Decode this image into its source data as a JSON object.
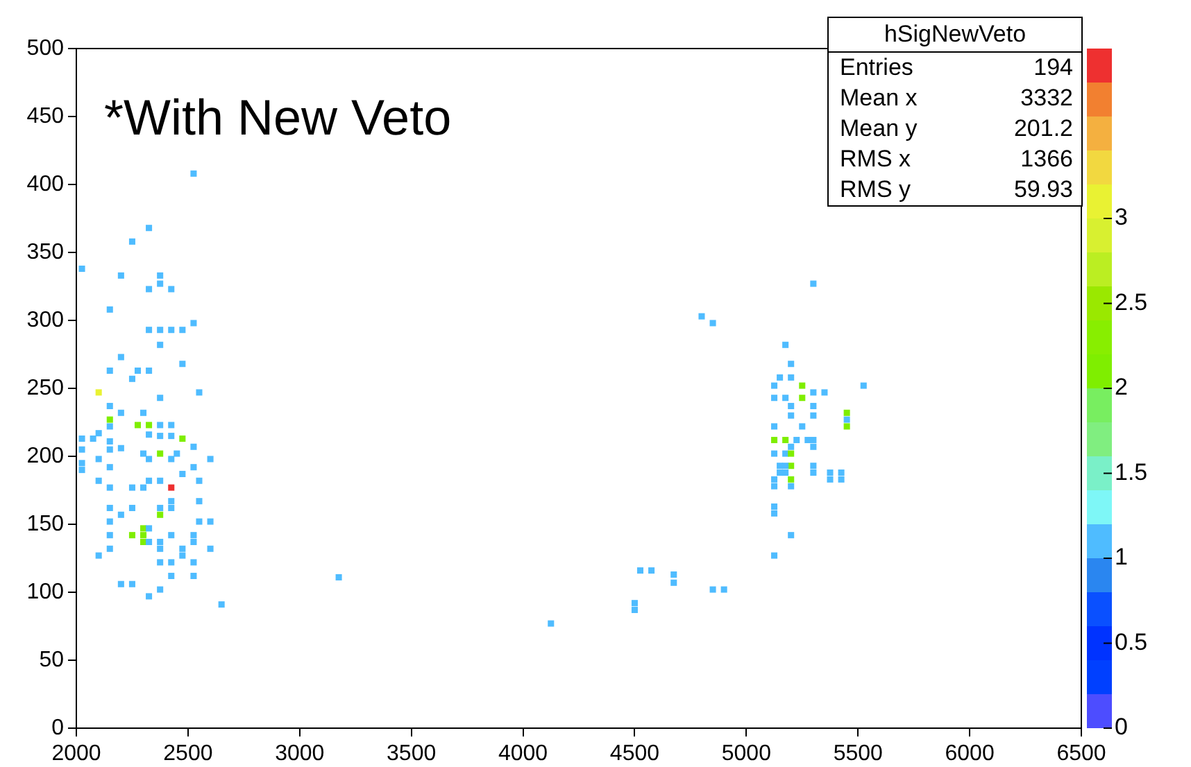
{
  "chart_data": {
    "type": "scatter",
    "marker": "square",
    "grid": false,
    "legend": false,
    "xlim": [
      2000,
      6500
    ],
    "xticks": [
      2000,
      2500,
      3000,
      3500,
      4000,
      4500,
      5000,
      5500,
      6000,
      6500
    ],
    "ylim": [
      0,
      500
    ],
    "yticks": [
      0,
      50,
      100,
      150,
      200,
      250,
      300,
      350,
      400,
      450,
      500
    ],
    "clim": [
      0,
      4
    ],
    "cticks": [
      0,
      0.5,
      1,
      1.5,
      2,
      2.5,
      3
    ],
    "annotations": [
      "*With New Veto",
      "hSigNewVeto",
      "Entries 194",
      "Mean x 3332",
      "Mean y 201.2",
      "RMS x 1366",
      "RMS y 59.93"
    ],
    "x": [
      2525,
      2325,
      2250,
      2025,
      2200,
      2375,
      2375,
      2325,
      2425,
      2150,
      2325,
      2375,
      2425,
      2475,
      2525,
      2375,
      2200,
      2475,
      2150,
      2275,
      2325,
      2250,
      2100,
      2375,
      2550,
      2150,
      2200,
      2300,
      2150,
      2150,
      2275,
      2325,
      2375,
      2425,
      2375,
      2425,
      2100,
      2325,
      2025,
      2075,
      2475,
      2150,
      2150,
      2200,
      2525,
      2025,
      2300,
      2375,
      2450,
      2425,
      2325,
      2100,
      2600,
      2025,
      2025,
      2150,
      2525,
      2475,
      2100,
      2325,
      2375,
      2550,
      2150,
      2250,
      2300,
      2425,
      2425,
      2550,
      2150,
      2250,
      2375,
      2425,
      2200,
      2375,
      2150,
      2550,
      2600,
      2300,
      2325,
      2250,
      2300,
      2300,
      2150,
      2325,
      2375,
      2425,
      2525,
      2525,
      2150,
      2375,
      2475,
      2600,
      2100,
      2475,
      2375,
      2425,
      2525,
      2425,
      2525,
      2200,
      2250,
      2375,
      2325,
      2650,
      5300,
      5175,
      5200,
      5150,
      5200,
      5125,
      5250,
      5525,
      5300,
      5350,
      5125,
      5175,
      5250,
      5200,
      5200,
      5300,
      5300,
      5450,
      5450,
      5450,
      5125,
      5250,
      5125,
      5175,
      5225,
      5275,
      5300,
      5300,
      5200,
      5125,
      5175,
      5200,
      5200,
      5150,
      5175,
      5150,
      5175,
      5300,
      5300,
      5375,
      5425,
      5375,
      5425,
      5125,
      5125,
      5200,
      5200,
      5125,
      5125,
      5200,
      5125,
      3175,
      4125,
      4525,
      4575,
      4675,
      4675,
      4500,
      4500,
      4850,
      4900,
      4800,
      4850
    ],
    "values": [
      408,
      368,
      358,
      338,
      333,
      333,
      327,
      323,
      323,
      308,
      293,
      293,
      293,
      293,
      298,
      282,
      273,
      268,
      263,
      263,
      263,
      257,
      247,
      243,
      247,
      237,
      232,
      232,
      227,
      222,
      223,
      223,
      223,
      223,
      215,
      215,
      217,
      216,
      213,
      213,
      213,
      211,
      205,
      206,
      207,
      205,
      202,
      202,
      202,
      198,
      198,
      198,
      198,
      195,
      190,
      192,
      192,
      187,
      182,
      182,
      182,
      182,
      177,
      177,
      177,
      177,
      167,
      167,
      162,
      162,
      162,
      162,
      157,
      157,
      152,
      152,
      152,
      147,
      147,
      142,
      142,
      137,
      142,
      137,
      137,
      142,
      142,
      137,
      132,
      132,
      132,
      132,
      127,
      127,
      122,
      122,
      122,
      112,
      112,
      106,
      106,
      102,
      97,
      91,
      327,
      282,
      268,
      258,
      258,
      252,
      252,
      252,
      247,
      247,
      243,
      243,
      243,
      237,
      230,
      237,
      230,
      232,
      227,
      222,
      222,
      222,
      212,
      212,
      212,
      212,
      212,
      207,
      207,
      202,
      202,
      202,
      193,
      193,
      193,
      188,
      188,
      193,
      188,
      188,
      188,
      183,
      183,
      183,
      178,
      183,
      178,
      163,
      158,
      142,
      127,
      111,
      77,
      116,
      116,
      113,
      107,
      92,
      87,
      102,
      102,
      303,
      298
    ],
    "cvalues": [
      1,
      1,
      1,
      1,
      1,
      1,
      1,
      1,
      1,
      1,
      1,
      1,
      1,
      1,
      1,
      1,
      1,
      1,
      1,
      1,
      1,
      1,
      3,
      1,
      1,
      1,
      1,
      1,
      2,
      1,
      2,
      2,
      1,
      1,
      1,
      1,
      1,
      1,
      1,
      1,
      2,
      1,
      1,
      1,
      1,
      1,
      1,
      2,
      1,
      1,
      1,
      1,
      1,
      1,
      1,
      1,
      1,
      1,
      1,
      1,
      1,
      1,
      1,
      1,
      1,
      4,
      1,
      1,
      1,
      1,
      1,
      1,
      1,
      2,
      1,
      1,
      1,
      2,
      1,
      2,
      2,
      2,
      1,
      1,
      1,
      1,
      1,
      1,
      1,
      1,
      1,
      1,
      1,
      1,
      1,
      1,
      1,
      1,
      1,
      1,
      1,
      1,
      1,
      1,
      1,
      1,
      1,
      1,
      1,
      1,
      2,
      1,
      1,
      1,
      1,
      1,
      2,
      1,
      1,
      1,
      1,
      2,
      1,
      2,
      1,
      1,
      2,
      2,
      1,
      1,
      1,
      1,
      1,
      1,
      1,
      2,
      2,
      1,
      1,
      1,
      1,
      1,
      1,
      1,
      1,
      1,
      1,
      1,
      1,
      2,
      1,
      1,
      1,
      1,
      1,
      1,
      1,
      1,
      1,
      1,
      1,
      1,
      1,
      1,
      1,
      1,
      1
    ]
  }
}
